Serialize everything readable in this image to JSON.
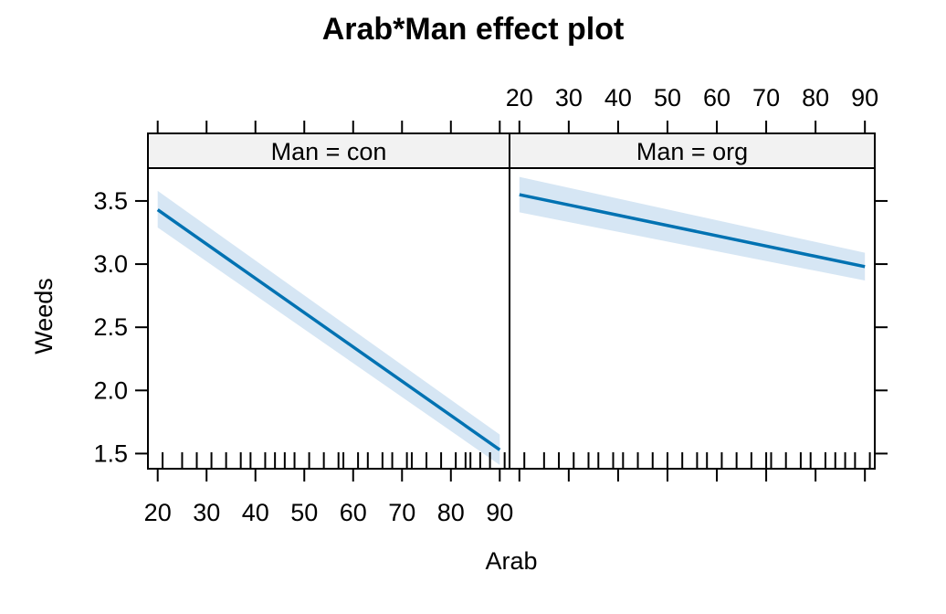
{
  "chart_data": {
    "type": "line",
    "title": "Arab*Man effect plot",
    "xlabel": "Arab",
    "ylabel": "Weeds",
    "xlim": [
      18,
      92
    ],
    "ylim": [
      1.38,
      3.76
    ],
    "x_ticks": [
      20,
      30,
      40,
      50,
      60,
      70,
      80,
      90
    ],
    "y_ticks": [
      1.5,
      2.0,
      2.5,
      3.0,
      3.5
    ],
    "x_tick_labels": [
      "20",
      "30",
      "40",
      "50",
      "60",
      "70",
      "80",
      "90"
    ],
    "y_tick_labels": [
      "1.5",
      "2.0",
      "2.5",
      "3.0",
      "3.5"
    ],
    "grid": false,
    "line_color": "#0072B2",
    "band_color": "#D6E6F4",
    "strip_color": "#F2F2F2",
    "panels": [
      {
        "strip": "Man = con",
        "x": [
          20,
          90
        ],
        "fit": [
          3.43,
          1.53
        ],
        "lower": [
          3.29,
          1.41
        ],
        "upper": [
          3.58,
          1.65
        ],
        "rug": [
          21,
          25,
          28,
          31,
          34,
          37,
          39,
          42,
          44,
          46,
          48,
          51,
          54,
          57,
          58,
          61,
          63,
          66,
          68,
          71,
          72,
          75,
          78,
          81,
          83,
          84,
          86,
          88,
          91
        ]
      },
      {
        "strip": "Man = org",
        "x": [
          20,
          90
        ],
        "fit": [
          3.55,
          2.98
        ],
        "lower": [
          3.41,
          2.87
        ],
        "upper": [
          3.69,
          3.09
        ],
        "rug": [
          21,
          25,
          28,
          31,
          34,
          36,
          39,
          41,
          44,
          47,
          50,
          53,
          56,
          58,
          61,
          64,
          67,
          70,
          71,
          74,
          77,
          79,
          82,
          84,
          86,
          88,
          91
        ]
      }
    ]
  }
}
